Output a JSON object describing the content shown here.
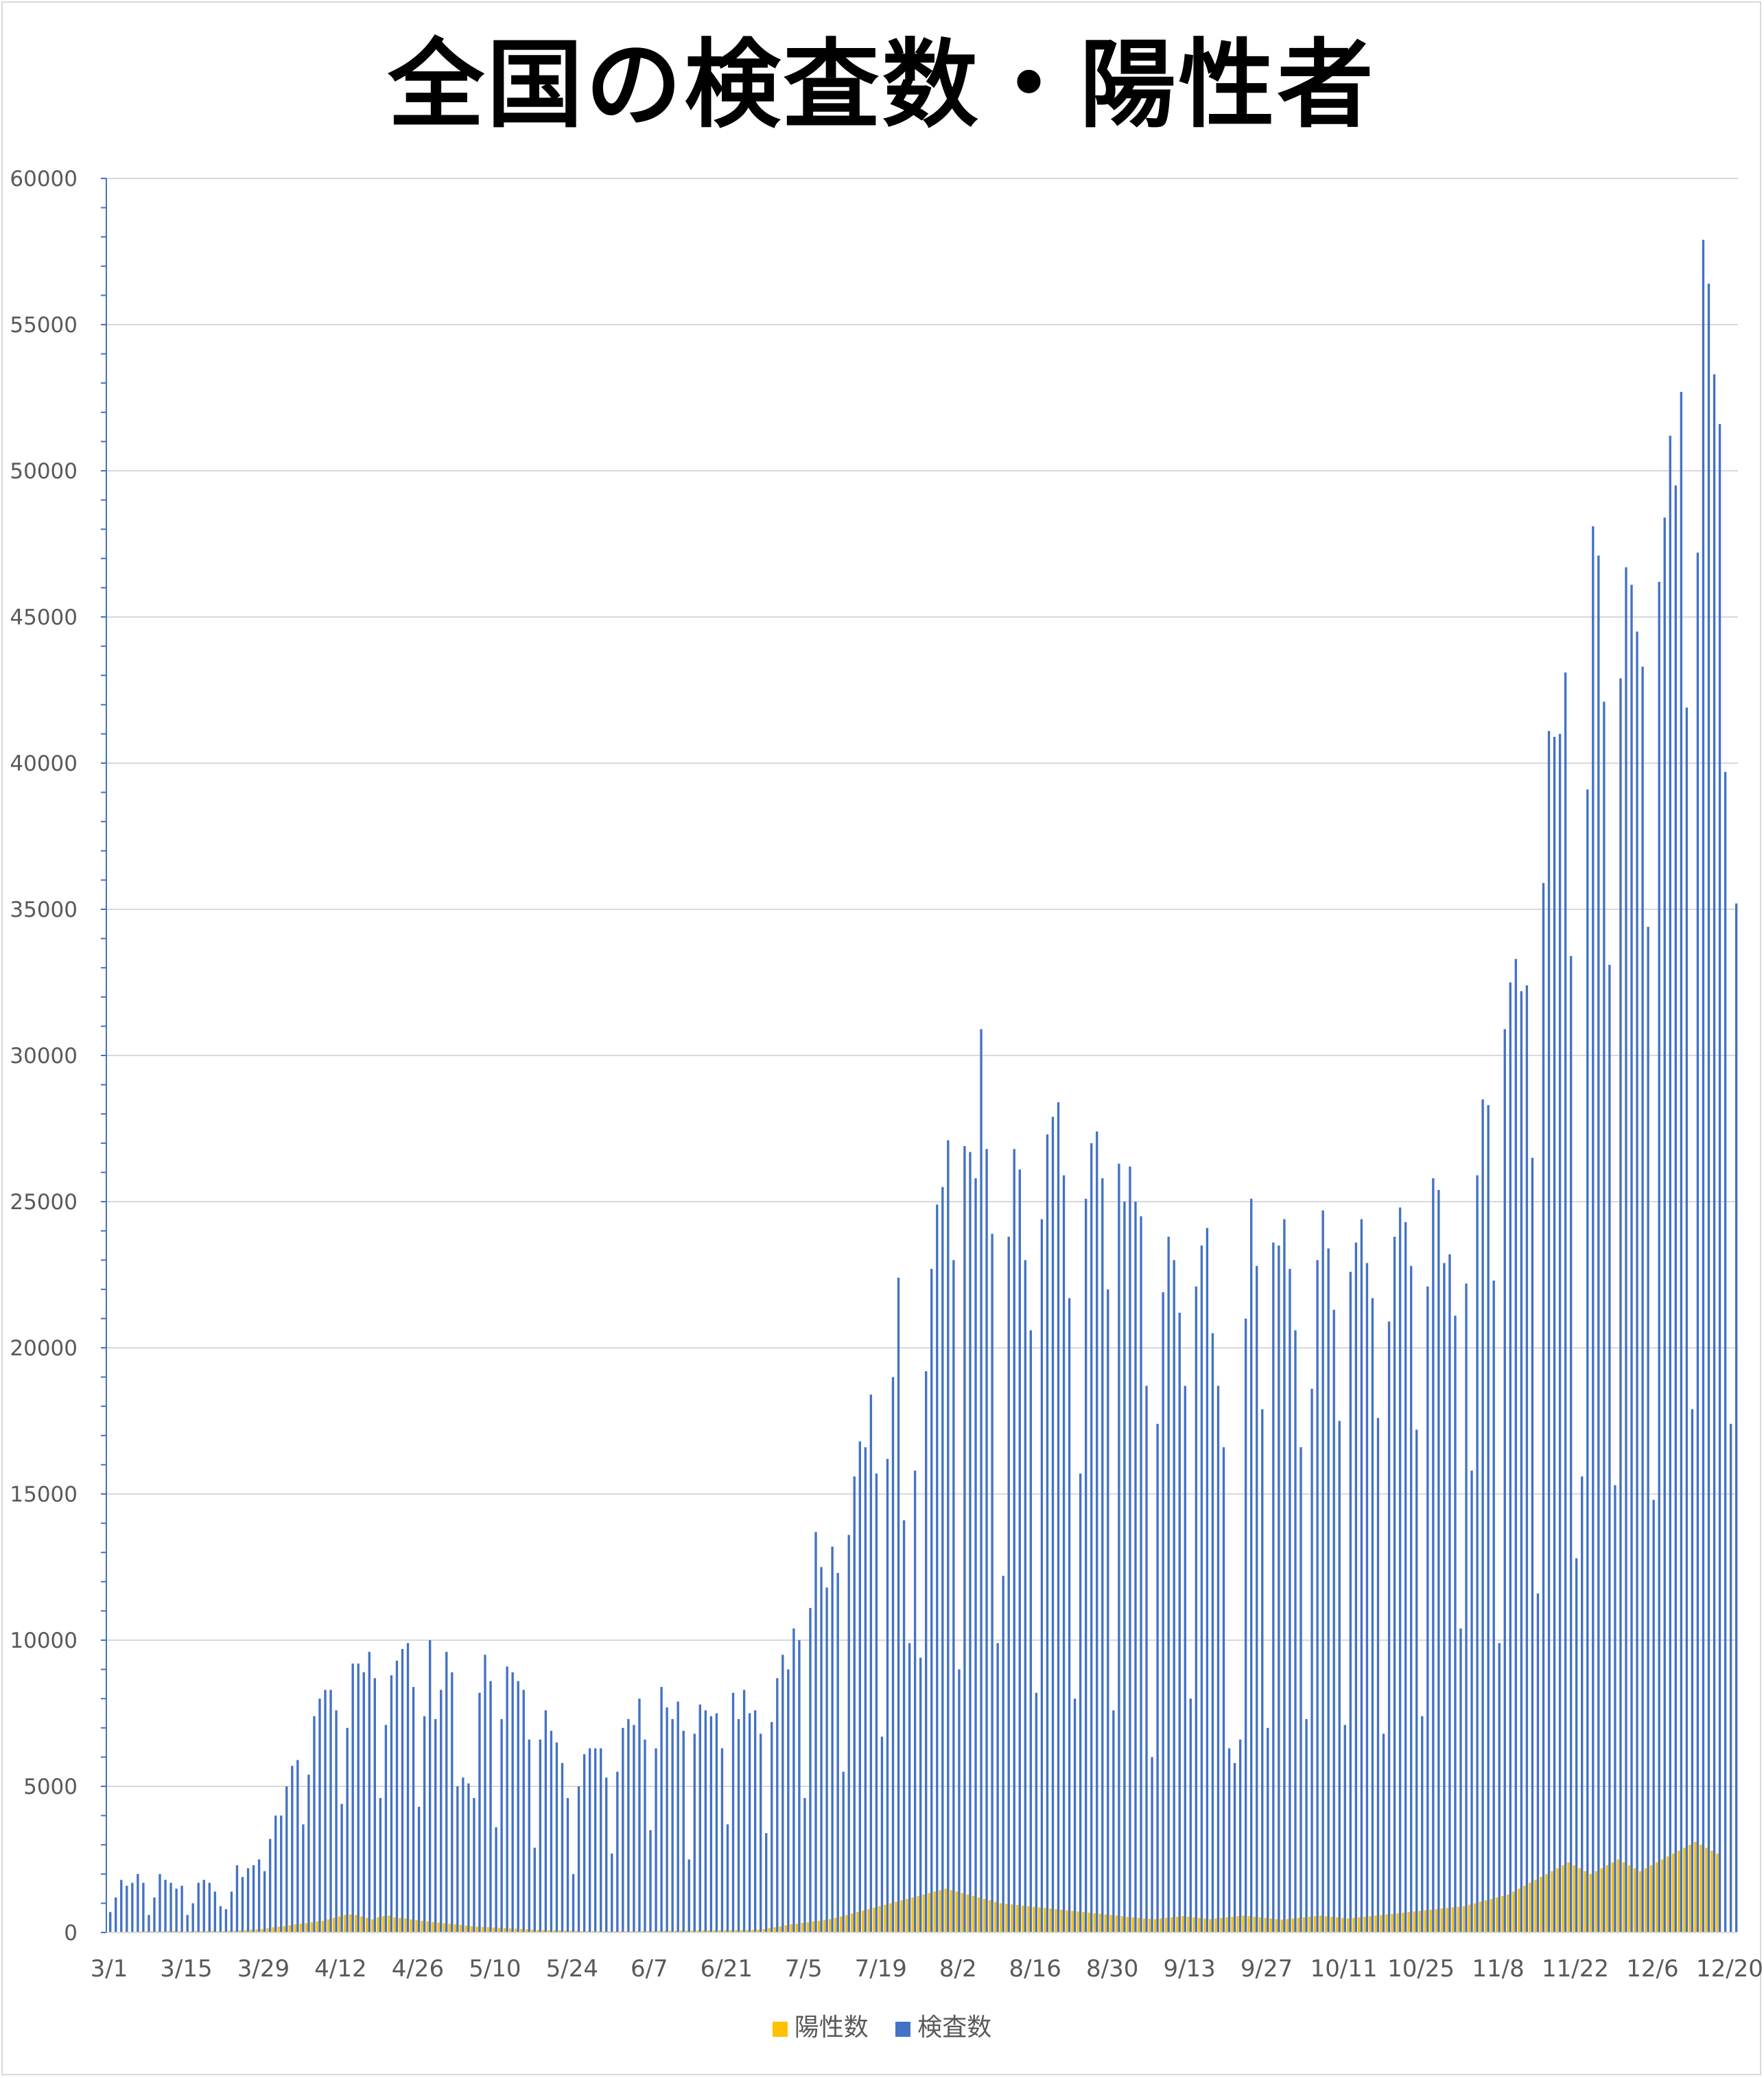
{
  "chart_data": {
    "type": "bar",
    "title": "全国の検査数・陽性者",
    "xlabel": "",
    "ylabel": "",
    "ylim": [
      0,
      60000
    ],
    "y_ticks": [
      "0",
      "5000",
      "10000",
      "15000",
      "20000",
      "25000",
      "30000",
      "35000",
      "40000",
      "45000",
      "50000",
      "55000",
      "60000"
    ],
    "x_tick_labels": [
      "3/1",
      "3/15",
      "3/29",
      "4/12",
      "4/26",
      "5/10",
      "5/24",
      "6/7",
      "6/21",
      "7/5",
      "7/19",
      "8/2",
      "8/16",
      "8/30",
      "9/13",
      "9/27",
      "10/11",
      "10/25",
      "11/8",
      "11/22",
      "12/6",
      "12/20"
    ],
    "grid": true,
    "legend_position": "bottom",
    "series": [
      {
        "name": "陽性数",
        "color": "#FFC000",
        "values": [
          15,
          12,
          18,
          20,
          25,
          30,
          35,
          40,
          45,
          40,
          35,
          50,
          55,
          45,
          30,
          40,
          50,
          45,
          50,
          60,
          40,
          45,
          55,
          60,
          70,
          80,
          100,
          110,
          120,
          150,
          180,
          200,
          220,
          250,
          280,
          300,
          320,
          350,
          380,
          400,
          450,
          500,
          550,
          600,
          620,
          600,
          550,
          500,
          450,
          520,
          560,
          580,
          520,
          500,
          480,
          450,
          420,
          400,
          380,
          360,
          340,
          320,
          300,
          280,
          260,
          240,
          220,
          200,
          190,
          180,
          170,
          160,
          150,
          140,
          130,
          120,
          110,
          100,
          90,
          85,
          80,
          75,
          70,
          65,
          60,
          55,
          50,
          48,
          46,
          44,
          42,
          40,
          38,
          40,
          42,
          44,
          46,
          48,
          50,
          52,
          54,
          56,
          58,
          60,
          62,
          64,
          66,
          68,
          70,
          72,
          74,
          76,
          78,
          80,
          82,
          84,
          86,
          90,
          100,
          120,
          150,
          180,
          210,
          250,
          280,
          300,
          330,
          350,
          380,
          400,
          430,
          460,
          500,
          550,
          600,
          650,
          700,
          750,
          800,
          850,
          900,
          950,
          1000,
          1050,
          1100,
          1150,
          1200,
          1250,
          1300,
          1350,
          1400,
          1450,
          1500,
          1450,
          1400,
          1350,
          1300,
          1250,
          1200,
          1150,
          1100,
          1050,
          1000,
          980,
          960,
          940,
          920,
          900,
          880,
          860,
          840,
          820,
          800,
          780,
          760,
          740,
          720,
          700,
          680,
          660,
          640,
          620,
          600,
          580,
          560,
          540,
          520,
          500,
          480,
          470,
          460,
          480,
          500,
          520,
          540,
          560,
          540,
          520,
          500,
          480,
          460,
          480,
          500,
          520,
          540,
          560,
          580,
          560,
          540,
          520,
          500,
          480,
          460,
          440,
          460,
          480,
          500,
          520,
          540,
          560,
          580,
          560,
          540,
          520,
          500,
          480,
          500,
          520,
          540,
          560,
          580,
          600,
          620,
          640,
          660,
          680,
          700,
          720,
          740,
          760,
          780,
          800,
          820,
          840,
          860,
          880,
          900,
          950,
          1000,
          1050,
          1100,
          1150,
          1200,
          1250,
          1300,
          1400,
          1500,
          1600,
          1700,
          1800,
          1900,
          2000,
          2100,
          2200,
          2300,
          2400,
          2300,
          2200,
          2100,
          2000,
          2100,
          2200,
          2300,
          2400,
          2500,
          2400,
          2300,
          2200,
          2100,
          2200,
          2300,
          2400,
          2500,
          2600,
          2700,
          2800,
          2900,
          3000,
          3100,
          3000,
          2900,
          2800,
          2700
        ]
      },
      {
        "name": "検査数",
        "color": "#4472C4",
        "values": [
          700,
          1200,
          1800,
          1600,
          1700,
          2000,
          1700,
          600,
          1200,
          2000,
          1800,
          1700,
          1500,
          1600,
          600,
          1000,
          1700,
          1800,
          1700,
          1400,
          900,
          800,
          1400,
          2300,
          1900,
          2200,
          2300,
          2500,
          2100,
          3200,
          4000,
          4000,
          5000,
          5700,
          5900,
          3700,
          5400,
          7400,
          8000,
          8300,
          8300,
          7600,
          4400,
          7000,
          9200,
          9200,
          8900,
          9600,
          8700,
          4600,
          7100,
          8800,
          9300,
          9700,
          9900,
          8400,
          4300,
          7400,
          10000,
          7300,
          8300,
          9600,
          8900,
          5000,
          5300,
          5100,
          4600,
          8200,
          9500,
          8600,
          3600,
          7300,
          9100,
          8900,
          8600,
          8300,
          6600,
          2900,
          6600,
          7600,
          6900,
          6500,
          5800,
          4600,
          2000,
          5000,
          6100,
          6300,
          6300,
          6300,
          5300,
          2700,
          5500,
          7000,
          7300,
          7100,
          8000,
          6600,
          3500,
          6300,
          8400,
          7700,
          7300,
          7900,
          6900,
          2500,
          6800,
          7800,
          7600,
          7400,
          7500,
          6300,
          3700,
          8200,
          7300,
          8300,
          7500,
          7600,
          6800,
          3400,
          7200,
          8700,
          9500,
          9000,
          10400,
          10000,
          4600,
          11100,
          13700,
          12500,
          11800,
          13200,
          12300,
          5500,
          13600,
          15600,
          16800,
          16600,
          18400,
          15700,
          6700,
          16200,
          19000,
          22400,
          14100,
          9900,
          15800,
          9400,
          19200,
          22700,
          24900,
          25500,
          27100,
          23000,
          9000,
          26900,
          26700,
          25800,
          30900,
          26800,
          23900,
          9900,
          12200,
          23800,
          26800,
          26100,
          23000,
          20600,
          8200,
          24400,
          27300,
          27900,
          28400,
          25900,
          21700,
          8000,
          15700,
          25100,
          27000,
          27400,
          25800,
          22000,
          7600,
          26300,
          25000,
          26200,
          25000,
          24500,
          18700,
          6000,
          17400,
          21900,
          23800,
          23000,
          21200,
          18700,
          8000,
          22100,
          23500,
          24100,
          20500,
          18700,
          16600,
          6300,
          5800,
          6600,
          21000,
          25100,
          22800,
          17900,
          7000,
          23600,
          23500,
          24400,
          22700,
          20600,
          16600,
          7300,
          18600,
          23000,
          24700,
          23400,
          21300,
          17500,
          7100,
          22600,
          23600,
          24400,
          22900,
          21700,
          17600,
          6800,
          20900,
          23800,
          24800,
          24300,
          22800,
          17200,
          7400,
          22100,
          25800,
          25400,
          22900,
          23200,
          21100,
          10400,
          22200,
          15800,
          25900,
          28500,
          28300,
          22300,
          9900,
          30900,
          32500,
          33300,
          32200,
          32400,
          26500,
          11600,
          35900,
          41100,
          40900,
          41000,
          43100,
          33400,
          12800,
          15600,
          39100,
          48100,
          47100,
          42100,
          33100,
          15300,
          42900,
          46700,
          46100,
          44500,
          43300,
          34400,
          14800,
          46200,
          48400,
          51200,
          49500,
          52700,
          41900,
          17900,
          47200,
          57900,
          56400,
          53300,
          51600,
          39700,
          17400,
          35200
        ]
      }
    ]
  }
}
